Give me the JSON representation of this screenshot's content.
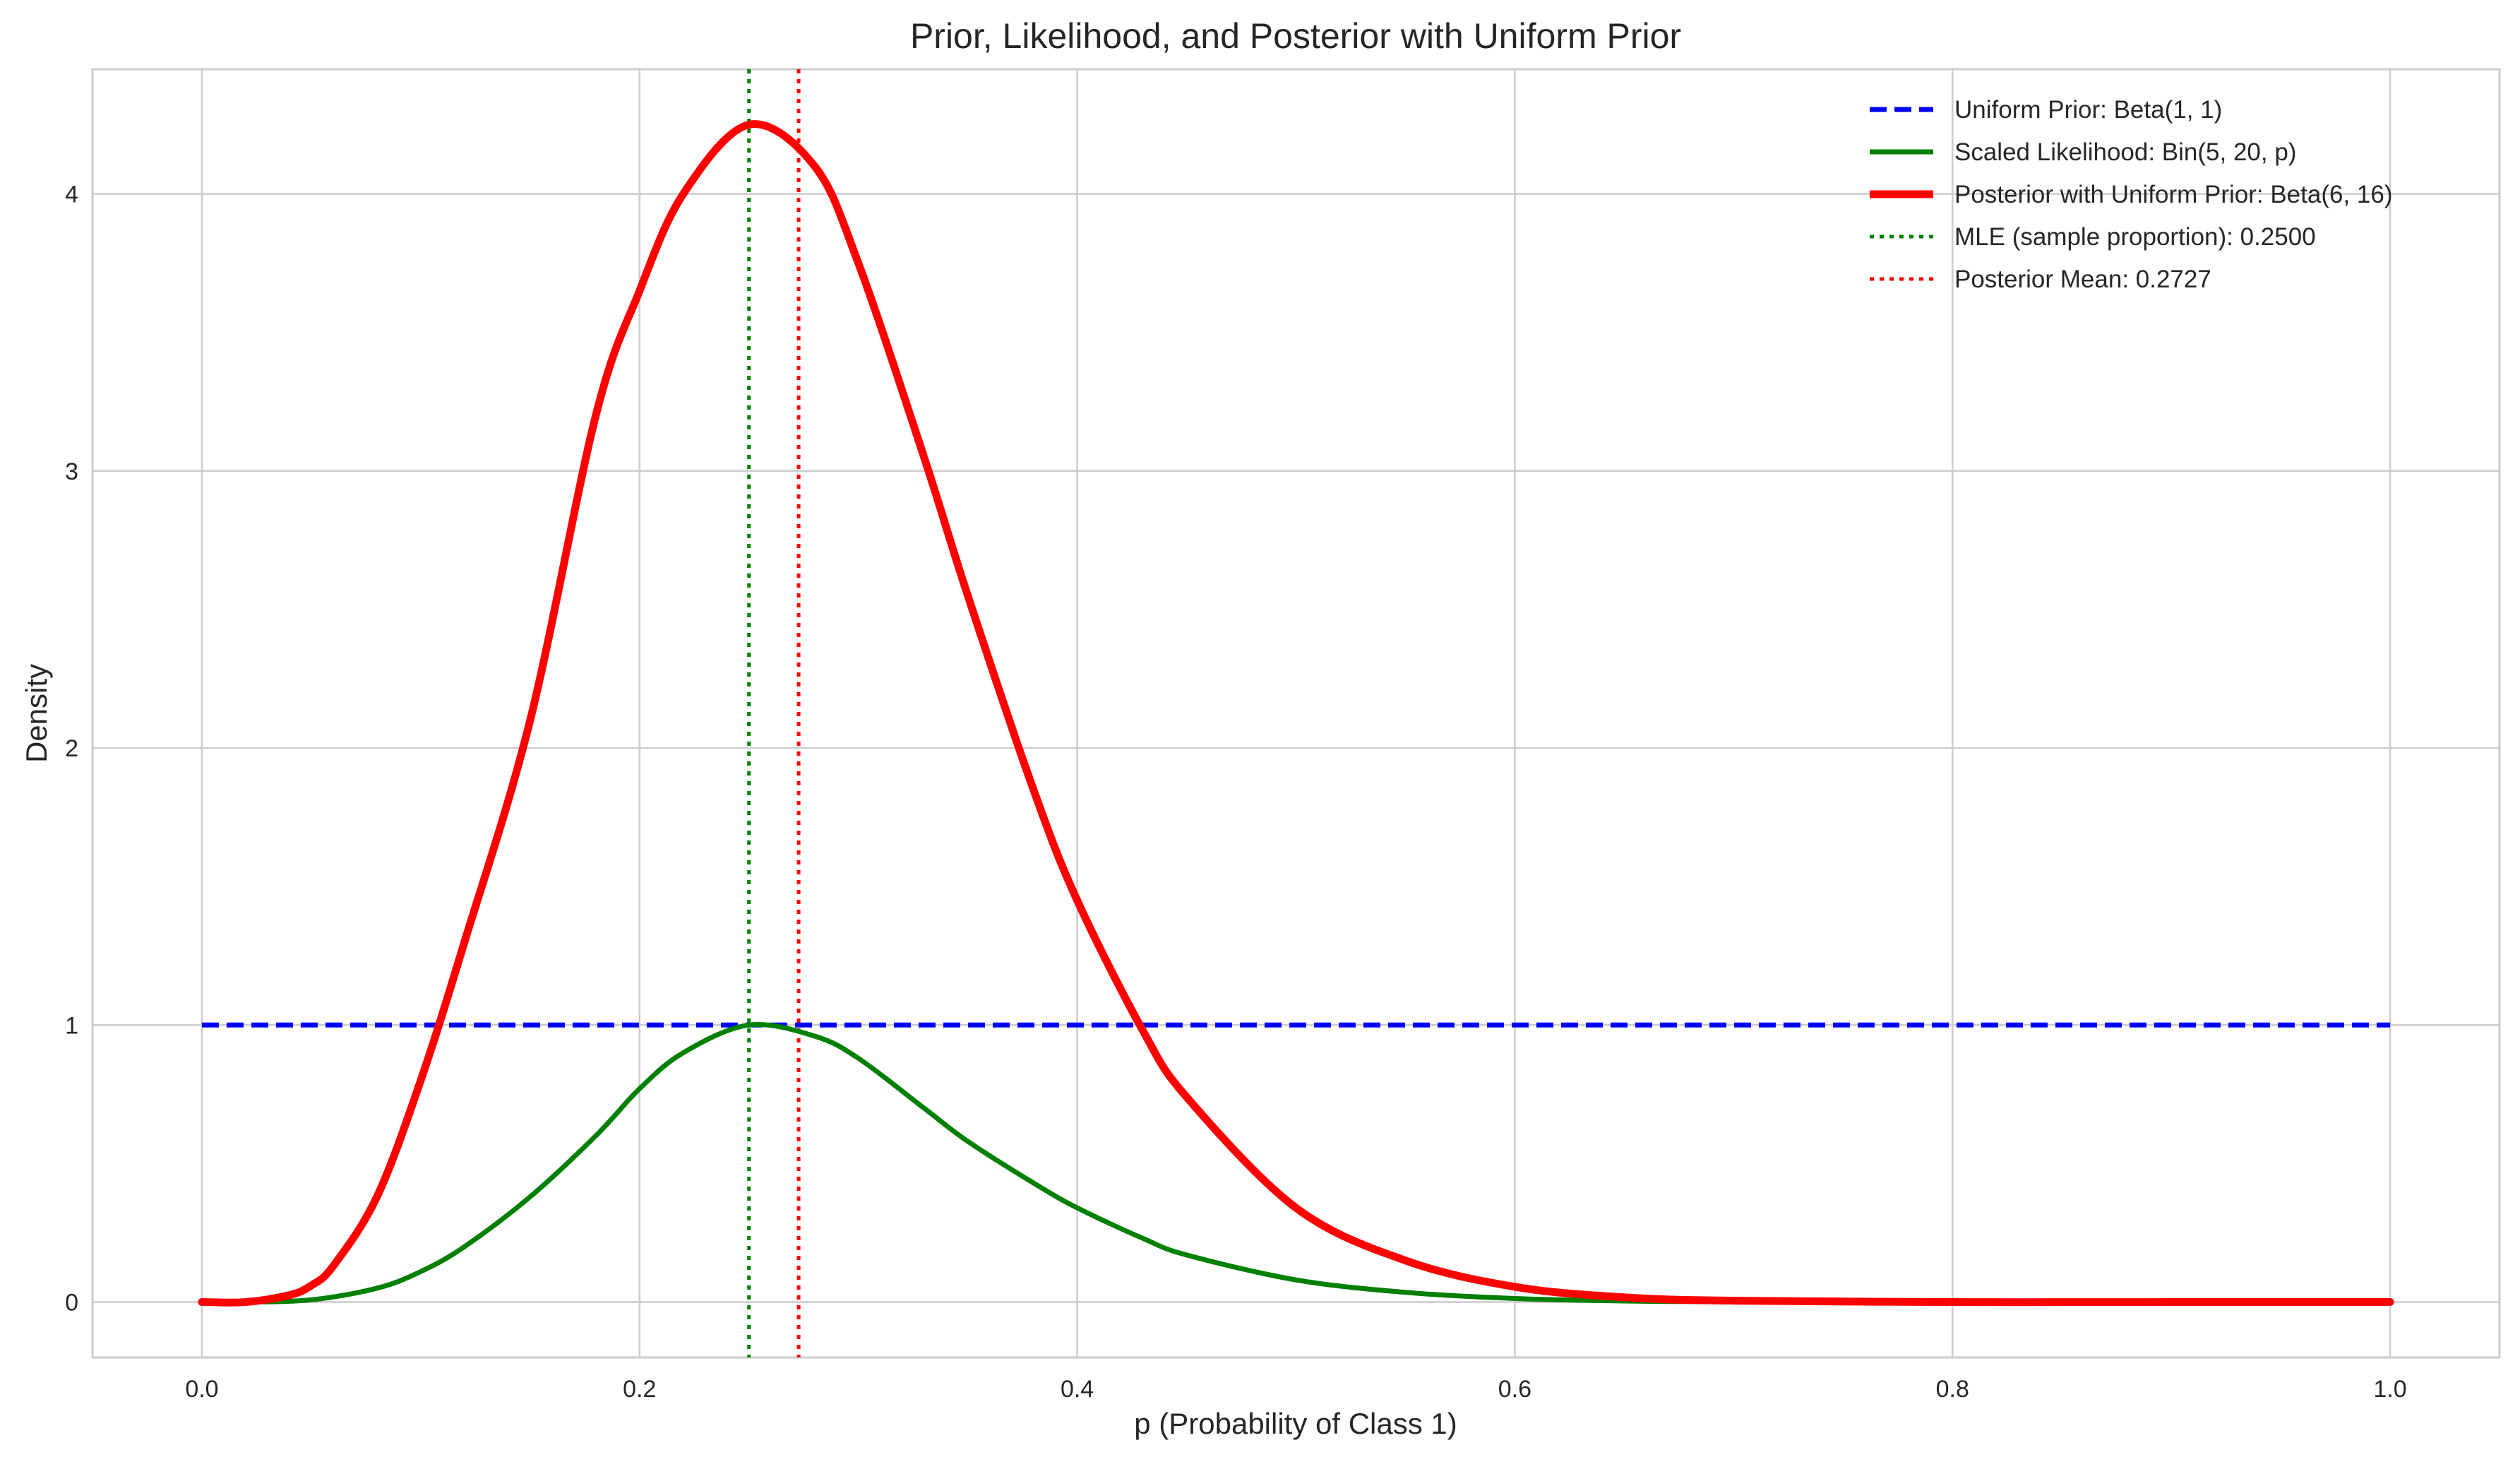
{
  "chart_data": {
    "type": "line",
    "title": "Prior, Likelihood, and Posterior with Uniform Prior",
    "xlabel": "p (Probability of Class 1)",
    "ylabel": "Density",
    "xlim": [
      -0.05,
      1.05
    ],
    "ylim": [
      -0.2,
      4.45
    ],
    "xticks": [
      0.0,
      0.2,
      0.4,
      0.6,
      0.8,
      1.0
    ],
    "xtick_labels": [
      "0.0",
      "0.2",
      "0.4",
      "0.6",
      "0.8",
      "1.0"
    ],
    "yticks": [
      0,
      1,
      2,
      3,
      4
    ],
    "ytick_labels": [
      "0",
      "1",
      "2",
      "3",
      "4"
    ],
    "grid": true,
    "legend_position": "top-right",
    "series": [
      {
        "name": "Uniform Prior: Beta(1, 1)",
        "color": "#0000ff",
        "style": "dashed",
        "x": [
          0.0,
          1.0
        ],
        "y": [
          1.0,
          1.0
        ]
      },
      {
        "name": "Scaled Likelihood: Bin(5, 20, p)",
        "color": "#008000",
        "style": "solid",
        "x": [
          0.0,
          0.02,
          0.05,
          0.08,
          0.1,
          0.12,
          0.15,
          0.18,
          0.2,
          0.22,
          0.25,
          0.28,
          0.3,
          0.33,
          0.35,
          0.38,
          0.4,
          0.43,
          0.45,
          0.5,
          0.55,
          0.6,
          0.65,
          0.7,
          0.8,
          0.9,
          1.0
        ],
        "y": [
          0.0,
          0.0,
          0.008,
          0.05,
          0.11,
          0.2,
          0.38,
          0.6,
          0.77,
          0.9,
          1.0,
          0.96,
          0.88,
          0.7,
          0.58,
          0.43,
          0.34,
          0.23,
          0.17,
          0.08,
          0.035,
          0.013,
          0.004,
          0.001,
          0.0,
          0.0,
          0.0
        ]
      },
      {
        "name": "Posterior with Uniform Prior: Beta(6, 16)",
        "color": "#ff0000",
        "style": "solid",
        "x": [
          0.0,
          0.02,
          0.04,
          0.05,
          0.06,
          0.08,
          0.1,
          0.12,
          0.15,
          0.18,
          0.2,
          0.22,
          0.25,
          0.28,
          0.3,
          0.33,
          0.35,
          0.38,
          0.4,
          0.43,
          0.45,
          0.5,
          0.55,
          0.6,
          0.65,
          0.7,
          0.8,
          0.9,
          1.0
        ],
        "y": [
          0.0,
          0.0,
          0.025,
          0.06,
          0.13,
          0.38,
          0.8,
          1.3,
          2.1,
          3.2,
          3.65,
          4.0,
          4.25,
          4.1,
          3.75,
          3.05,
          2.55,
          1.85,
          1.45,
          0.98,
          0.74,
          0.34,
          0.15,
          0.055,
          0.017,
          0.005,
          0.0,
          0.0,
          0.0
        ]
      }
    ],
    "vlines": [
      {
        "name": "MLE (sample proportion): 0.2500",
        "x": 0.25,
        "color": "#008000",
        "style": "dotted"
      },
      {
        "name": "Posterior Mean: 0.2727",
        "x": 0.2727,
        "color": "#ff0000",
        "style": "dotted"
      }
    ]
  }
}
